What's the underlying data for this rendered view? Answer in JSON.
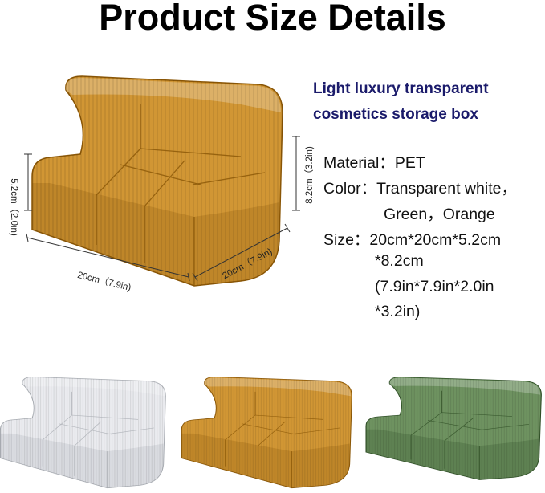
{
  "title": "Product Size Details",
  "subtitle": [
    "Light luxury transparent",
    "cosmetics storage box"
  ],
  "specs": {
    "material": "Material：PET",
    "color_line1": "Color：Transparent white，",
    "color_line2": "Green，Orange",
    "size_line1": "Size：20cm*20cm*5.2cm",
    "size_line2": "*8.2cm",
    "size_line3": "(7.9in*7.9in*2.0in",
    "size_line4": "*3.2in)"
  },
  "dimensions": {
    "front_height": "5.2cm（2.0in)",
    "back_height": "8.2cm（3.2in)",
    "length": "20cm（7.9in)",
    "width": "20cm（7.9in)"
  },
  "variants": [
    {
      "name": "transparent-white",
      "fill": "#e6e8ec",
      "stroke": "#a9adb3"
    },
    {
      "name": "orange",
      "fill": "#c98410",
      "stroke": "#8a5606"
    },
    {
      "name": "green",
      "fill": "#557f44",
      "stroke": "#2f4f26"
    }
  ]
}
